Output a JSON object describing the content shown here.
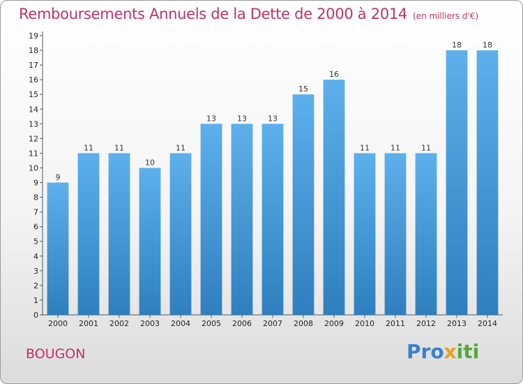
{
  "header": {
    "title": "Remboursements Annuels de la Dette de 2000 à 2014",
    "unit": "(en milliers d'€)"
  },
  "footer": {
    "commune": "BOUGON",
    "logo_text": "Proxiti",
    "logo_letters": [
      {
        "ch": "P",
        "color": "#3a7fd0"
      },
      {
        "ch": "r",
        "color": "#3a7fd0"
      },
      {
        "ch": "o",
        "color": "#3a7fd0"
      },
      {
        "ch": "x",
        "color": "#e8a020"
      },
      {
        "ch": "i",
        "color": "#52a83a"
      },
      {
        "ch": "t",
        "color": "#52a83a"
      },
      {
        "ch": "i",
        "color": "#52a83a"
      }
    ]
  },
  "colors": {
    "accent": "#c2306a",
    "bar_top": "#5db0ec",
    "bar_bottom": "#2f7fbe"
  },
  "chart_data": {
    "type": "bar",
    "title": "Remboursements Annuels de la Dette de 2000 à 2014",
    "subtitle": "(en milliers d'€)",
    "xlabel": "",
    "ylabel": "",
    "categories": [
      "2000",
      "2001",
      "2002",
      "2003",
      "2004",
      "2005",
      "2006",
      "2007",
      "2008",
      "2009",
      "2010",
      "2011",
      "2012",
      "2013",
      "2014"
    ],
    "values": [
      9,
      11,
      11,
      10,
      11,
      13,
      13,
      13,
      15,
      16,
      11,
      11,
      11,
      18,
      18
    ],
    "ylim": [
      0,
      19
    ],
    "yticks": [
      0,
      1,
      2,
      3,
      4,
      5,
      6,
      7,
      8,
      9,
      10,
      11,
      12,
      13,
      14,
      15,
      16,
      17,
      18,
      19
    ],
    "grid": false,
    "legend": "none"
  }
}
